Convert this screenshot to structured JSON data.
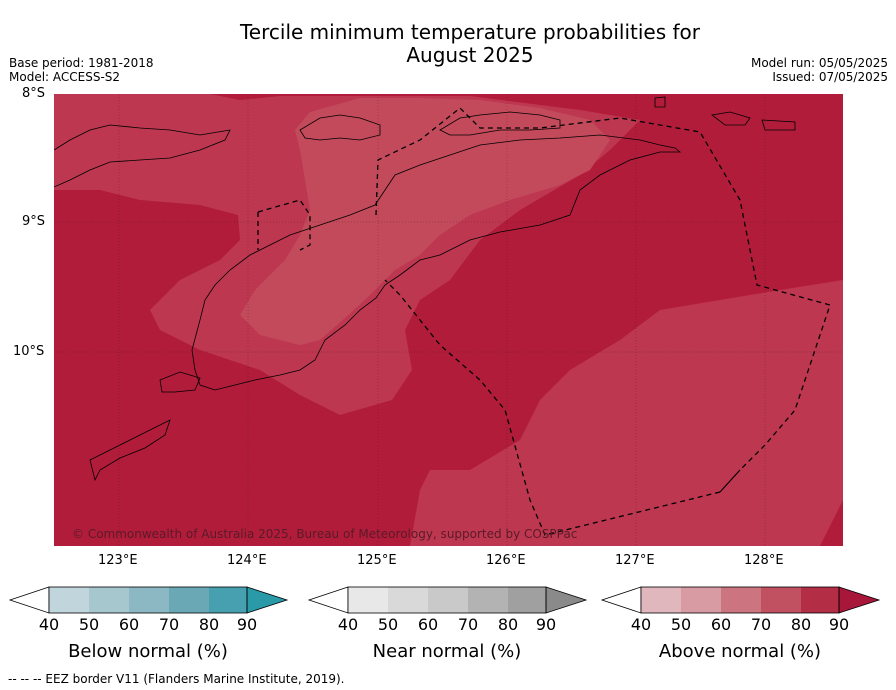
{
  "title_line1": "Tercile minimum temperature probabilities for",
  "title_line2": "August 2025",
  "base_period": "Base period: 1981-2018",
  "model": "Model: ACCESS-S2",
  "model_run": "Model run: 05/05/2025",
  "issued": "Issued: 07/05/2025",
  "lat_labels": [
    "8°S",
    "9°S",
    "10°S"
  ],
  "lon_labels": [
    "123°E",
    "124°E",
    "125°E",
    "126°E",
    "127°E",
    "128°E"
  ],
  "copyright": "© Commonwealth of Australia 2025, Bureau of Meteorology, supported by COSPPac",
  "colorbars": [
    {
      "label": "Below normal (%)",
      "ticks": [
        "40",
        "50",
        "60",
        "70",
        "80",
        "90"
      ],
      "colors": [
        "#c0d5dc",
        "#a6c7cd",
        "#8bb8c2",
        "#6aa8b5",
        "#47a0b0",
        "#2a9aa9"
      ]
    },
    {
      "label": "Near normal (%)",
      "ticks": [
        "40",
        "50",
        "60",
        "70",
        "80",
        "90"
      ],
      "colors": [
        "#e8e8e8",
        "#d9d9d9",
        "#c9c9c9",
        "#b3b3b3",
        "#a0a0a0",
        "#8a8a8a"
      ]
    },
    {
      "label": "Above normal (%)",
      "ticks": [
        "40",
        "50",
        "60",
        "70",
        "80",
        "90"
      ],
      "colors": [
        "#e1b7be",
        "#d89aa3",
        "#cc7580",
        "#c15060",
        "#b32d45",
        "#a8163a"
      ]
    }
  ],
  "map_colors": {
    "p90": "#b11c3a",
    "p80": "#bd3750",
    "p70": "#c24a5b"
  },
  "footer": "--  --  -- EEZ border V11 (Flanders Marine Institute, 2019)."
}
